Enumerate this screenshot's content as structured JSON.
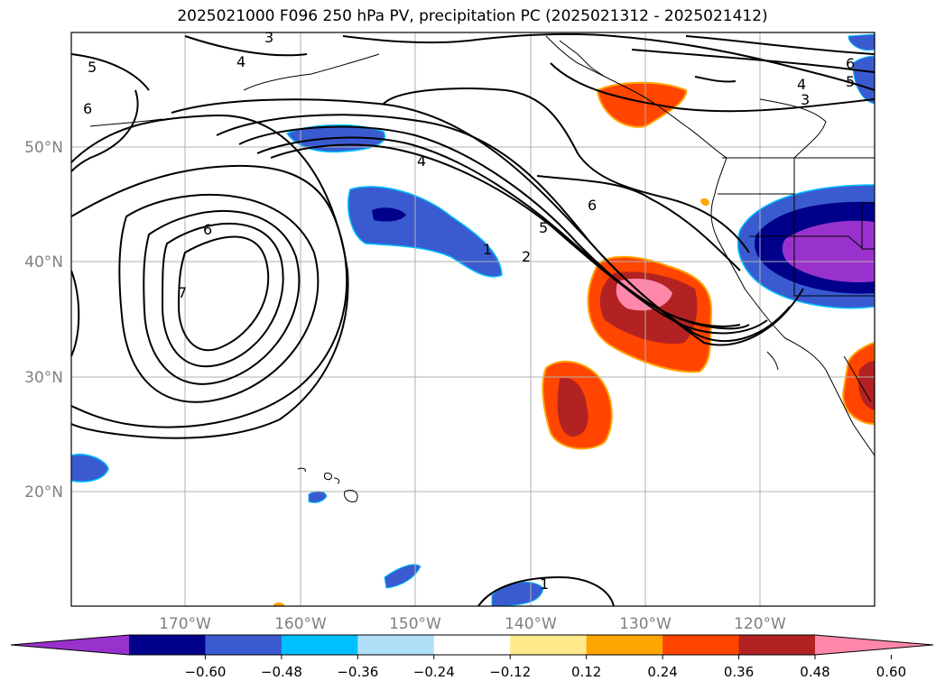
{
  "title": "2025021000 F096 250 hPa PV, precipitation PC (2025021312 - 2025021412)",
  "map": {
    "lat_labels": [
      "20°N",
      "30°N",
      "40°N",
      "50°N"
    ],
    "lon_labels": [
      "170°W",
      "160°W",
      "150°W",
      "140°W",
      "130°W",
      "120°W"
    ],
    "lat_range": [
      10,
      60
    ],
    "lon_range": [
      -180,
      -110
    ],
    "gridlines": true,
    "label_color": "#808080"
  },
  "pv_contour_labels": [
    "1",
    "2",
    "3",
    "4",
    "5",
    "6",
    "7"
  ],
  "colorbar": {
    "ticks": [
      "−0.60",
      "−0.48",
      "−0.36",
      "−0.24",
      "−0.12",
      "0.12",
      "0.24",
      "0.36",
      "0.48",
      "0.60"
    ],
    "colors": [
      "#9932cc",
      "#00008b",
      "#3a5bd0",
      "#00bfff",
      "#b0e0f8",
      "#ffffff",
      "#ffe98a",
      "#ffa500",
      "#ff4500",
      "#b22222",
      "#ff88aa"
    ],
    "extend": "both"
  }
}
